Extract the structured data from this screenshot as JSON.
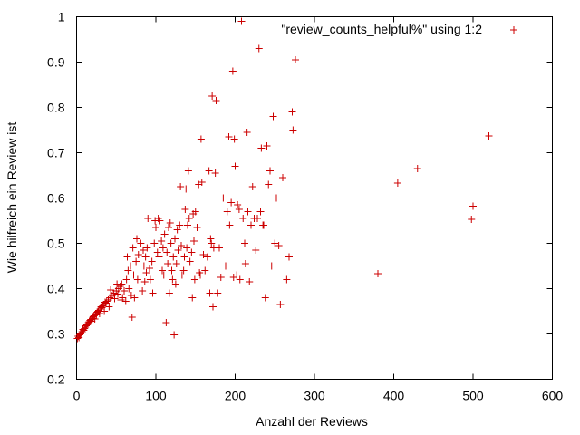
{
  "chart_data": {
    "type": "scatter",
    "xlabel": "Anzahl der Reviews",
    "ylabel": "Wie hilfreich ein Review ist",
    "xlim": [
      0,
      600
    ],
    "ylim": [
      0.2,
      1
    ],
    "xticks": [
      0,
      100,
      200,
      300,
      400,
      500,
      600
    ],
    "yticks": [
      0.2,
      0.3,
      0.4,
      0.5,
      0.6,
      0.7,
      0.8,
      0.9,
      1
    ],
    "ytick_labels": [
      "0.2",
      "0.3",
      "0.4",
      "0.5",
      "0.6",
      "0.7",
      "0.8",
      "0.9",
      "1"
    ],
    "grid": false,
    "legend_position": "top-right",
    "series": [
      {
        "name": "\"review_counts_helpful%\" using 1:2",
        "color": "#cc0000",
        "marker": "plus",
        "points": [
          [
            1,
            0.29
          ],
          [
            2,
            0.295
          ],
          [
            3,
            0.292
          ],
          [
            4,
            0.298
          ],
          [
            5,
            0.3
          ],
          [
            6,
            0.302
          ],
          [
            7,
            0.305
          ],
          [
            8,
            0.31
          ],
          [
            9,
            0.308
          ],
          [
            10,
            0.312
          ],
          [
            11,
            0.315
          ],
          [
            12,
            0.318
          ],
          [
            13,
            0.32
          ],
          [
            14,
            0.322
          ],
          [
            15,
            0.325
          ],
          [
            16,
            0.327
          ],
          [
            17,
            0.33
          ],
          [
            18,
            0.332
          ],
          [
            19,
            0.328
          ],
          [
            20,
            0.335
          ],
          [
            21,
            0.338
          ],
          [
            22,
            0.34
          ],
          [
            23,
            0.333
          ],
          [
            24,
            0.345
          ],
          [
            25,
            0.342
          ],
          [
            26,
            0.348
          ],
          [
            27,
            0.35
          ],
          [
            28,
            0.352
          ],
          [
            29,
            0.345
          ],
          [
            30,
            0.355
          ],
          [
            31,
            0.36
          ],
          [
            32,
            0.358
          ],
          [
            33,
            0.362
          ],
          [
            34,
            0.365
          ],
          [
            35,
            0.35
          ],
          [
            36,
            0.37
          ],
          [
            37,
            0.368
          ],
          [
            38,
            0.372
          ],
          [
            40,
            0.375
          ],
          [
            41,
            0.36
          ],
          [
            42,
            0.38
          ],
          [
            43,
            0.397
          ],
          [
            45,
            0.385
          ],
          [
            47,
            0.39
          ],
          [
            48,
            0.378
          ],
          [
            50,
            0.395
          ],
          [
            51,
            0.41
          ],
          [
            52,
            0.388
          ],
          [
            53,
            0.4
          ],
          [
            55,
            0.405
          ],
          [
            56,
            0.375
          ],
          [
            57,
            0.41
          ],
          [
            58,
            0.38
          ],
          [
            60,
            0.395
          ],
          [
            62,
            0.372
          ],
          [
            63,
            0.42
          ],
          [
            64,
            0.47
          ],
          [
            65,
            0.44
          ],
          [
            66,
            0.4
          ],
          [
            68,
            0.45
          ],
          [
            69,
            0.385
          ],
          [
            70,
            0.337
          ],
          [
            71,
            0.49
          ],
          [
            72,
            0.43
          ],
          [
            73,
            0.38
          ],
          [
            75,
            0.46
          ],
          [
            76,
            0.51
          ],
          [
            77,
            0.42
          ],
          [
            78,
            0.475
          ],
          [
            80,
            0.43
          ],
          [
            81,
            0.5
          ],
          [
            83,
            0.395
          ],
          [
            84,
            0.485
          ],
          [
            85,
            0.45
          ],
          [
            86,
            0.415
          ],
          [
            87,
            0.47
          ],
          [
            88,
            0.435
          ],
          [
            89,
            0.49
          ],
          [
            90,
            0.555
          ],
          [
            92,
            0.445
          ],
          [
            93,
            0.42
          ],
          [
            95,
            0.46
          ],
          [
            96,
            0.39
          ],
          [
            98,
            0.5
          ],
          [
            99,
            0.55
          ],
          [
            100,
            0.535
          ],
          [
            102,
            0.48
          ],
          [
            103,
            0.555
          ],
          [
            104,
            0.47
          ],
          [
            105,
            0.55
          ],
          [
            107,
            0.505
          ],
          [
            108,
            0.44
          ],
          [
            109,
            0.49
          ],
          [
            110,
            0.43
          ],
          [
            111,
            0.52
          ],
          [
            113,
            0.325
          ],
          [
            114,
            0.48
          ],
          [
            115,
            0.455
          ],
          [
            116,
            0.535
          ],
          [
            117,
            0.39
          ],
          [
            118,
            0.545
          ],
          [
            119,
            0.5
          ],
          [
            120,
            0.44
          ],
          [
            121,
            0.42
          ],
          [
            122,
            0.47
          ],
          [
            123,
            0.298
          ],
          [
            124,
            0.51
          ],
          [
            125,
            0.41
          ],
          [
            126,
            0.455
          ],
          [
            127,
            0.53
          ],
          [
            128,
            0.485
          ],
          [
            130,
            0.54
          ],
          [
            131,
            0.625
          ],
          [
            132,
            0.495
          ],
          [
            133,
            0.43
          ],
          [
            135,
            0.44
          ],
          [
            136,
            0.47
          ],
          [
            137,
            0.575
          ],
          [
            138,
            0.62
          ],
          [
            139,
            0.49
          ],
          [
            140,
            0.54
          ],
          [
            141,
            0.66
          ],
          [
            142,
            0.555
          ],
          [
            143,
            0.46
          ],
          [
            145,
            0.48
          ],
          [
            146,
            0.38
          ],
          [
            147,
            0.565
          ],
          [
            148,
            0.505
          ],
          [
            149,
            0.42
          ],
          [
            150,
            0.57
          ],
          [
            152,
            0.535
          ],
          [
            154,
            0.63
          ],
          [
            155,
            0.435
          ],
          [
            156,
            0.43
          ],
          [
            157,
            0.73
          ],
          [
            158,
            0.635
          ],
          [
            160,
            0.475
          ],
          [
            162,
            0.44
          ],
          [
            165,
            0.47
          ],
          [
            167,
            0.66
          ],
          [
            168,
            0.39
          ],
          [
            169,
            0.51
          ],
          [
            170,
            0.5
          ],
          [
            171,
            0.825
          ],
          [
            172,
            0.36
          ],
          [
            173,
            0.49
          ],
          [
            175,
            0.655
          ],
          [
            176,
            0.815
          ],
          [
            178,
            0.39
          ],
          [
            180,
            0.49
          ],
          [
            182,
            0.425
          ],
          [
            185,
            0.6
          ],
          [
            188,
            0.45
          ],
          [
            190,
            0.57
          ],
          [
            192,
            0.735
          ],
          [
            193,
            0.54
          ],
          [
            195,
            0.59
          ],
          [
            197,
            0.88
          ],
          [
            198,
            0.425
          ],
          [
            199,
            0.73
          ],
          [
            200,
            0.67
          ],
          [
            202,
            0.43
          ],
          [
            203,
            0.585
          ],
          [
            205,
            0.575
          ],
          [
            206,
            0.42
          ],
          [
            208,
            0.99
          ],
          [
            210,
            0.555
          ],
          [
            212,
            0.5
          ],
          [
            213,
            0.455
          ],
          [
            215,
            0.745
          ],
          [
            216,
            0.57
          ],
          [
            218,
            0.415
          ],
          [
            220,
            0.54
          ],
          [
            222,
            0.625
          ],
          [
            224,
            0.555
          ],
          [
            226,
            0.485
          ],
          [
            228,
            0.555
          ],
          [
            230,
            0.93
          ],
          [
            232,
            0.57
          ],
          [
            233,
            0.71
          ],
          [
            235,
            0.54
          ],
          [
            236,
            0.54
          ],
          [
            238,
            0.38
          ],
          [
            240,
            0.715
          ],
          [
            242,
            0.63
          ],
          [
            244,
            0.66
          ],
          [
            246,
            0.45
          ],
          [
            248,
            0.78
          ],
          [
            250,
            0.5
          ],
          [
            252,
            0.6
          ],
          [
            255,
            0.495
          ],
          [
            257,
            0.365
          ],
          [
            260,
            0.645
          ],
          [
            265,
            0.42
          ],
          [
            268,
            0.47
          ],
          [
            272,
            0.79
          ],
          [
            273,
            0.75
          ],
          [
            276,
            0.905
          ],
          [
            380,
            0.433
          ],
          [
            405,
            0.633
          ],
          [
            430,
            0.665
          ],
          [
            498,
            0.553
          ],
          [
            500,
            0.582
          ],
          [
            520,
            0.737
          ]
        ]
      }
    ]
  }
}
